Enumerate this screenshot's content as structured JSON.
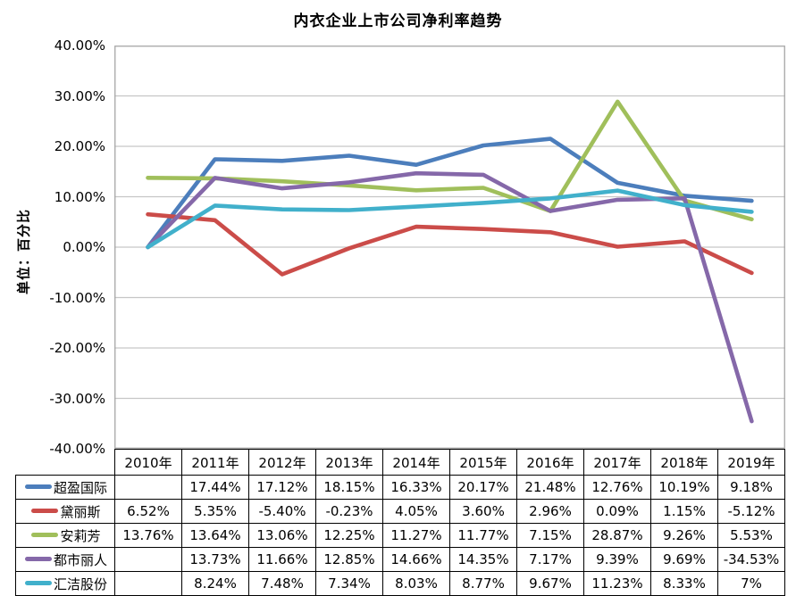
{
  "chart_data": {
    "type": "line",
    "title": "内衣企业上市公司净利率趋势",
    "ylabel": "单位：百分比",
    "xlabel": "",
    "categories": [
      "2010年",
      "2011年",
      "2012年",
      "2013年",
      "2014年",
      "2015年",
      "2016年",
      "2017年",
      "2018年",
      "2019年"
    ],
    "series": [
      {
        "name": "超盈国际",
        "color": "#4C7EBC",
        "values": [
          null,
          17.44,
          17.12,
          18.15,
          16.33,
          20.17,
          21.48,
          12.76,
          10.19,
          9.18
        ]
      },
      {
        "name": "黛丽斯",
        "color": "#CB4C49",
        "values": [
          6.52,
          5.35,
          -5.4,
          -0.23,
          4.05,
          3.6,
          2.96,
          0.09,
          1.15,
          -5.12
        ]
      },
      {
        "name": "安莉芳",
        "color": "#A0BF5B",
        "values": [
          13.76,
          13.64,
          13.06,
          12.25,
          11.27,
          11.77,
          7.15,
          28.87,
          9.26,
          5.53
        ]
      },
      {
        "name": "都市丽人",
        "color": "#8568A9",
        "values": [
          null,
          13.73,
          11.66,
          12.85,
          14.66,
          14.35,
          7.17,
          9.39,
          9.69,
          -34.53
        ]
      },
      {
        "name": "汇洁股份",
        "color": "#41B0CB",
        "values": [
          null,
          8.24,
          7.48,
          7.34,
          8.03,
          8.77,
          9.67,
          11.23,
          8.33,
          7
        ]
      }
    ],
    "ylim": [
      -40,
      40
    ],
    "ytick_step": 10,
    "ytick_labels": [
      "40.00%",
      "30.00%",
      "20.00%",
      "10.00%",
      "0.00%",
      "-10.00%",
      "-20.00%",
      "-30.00%",
      "-40.00%"
    ],
    "grid": true,
    "legend_position": "table-rows-left",
    "missing_plotted_as_zero": true,
    "gridline_color": "#C6C6C6",
    "plot_border_color": "#A6A6A6"
  },
  "table": {
    "header": [
      "2010年",
      "2011年",
      "2012年",
      "2013年",
      "2014年",
      "2015年",
      "2016年",
      "2017年",
      "2018年",
      "2019年"
    ],
    "rows": [
      {
        "label": "超盈国际",
        "marker_color": "#4C7EBC",
        "cells": [
          "",
          "17.44%",
          "17.12%",
          "18.15%",
          "16.33%",
          "20.17%",
          "21.48%",
          "12.76%",
          "10.19%",
          "9.18%"
        ]
      },
      {
        "label": "黛丽斯",
        "marker_color": "#CB4C49",
        "cells": [
          "6.52%",
          "5.35%",
          "-5.40%",
          "-0.23%",
          "4.05%",
          "3.60%",
          "2.96%",
          "0.09%",
          "1.15%",
          "-5.12%"
        ]
      },
      {
        "label": "安莉芳",
        "marker_color": "#A0BF5B",
        "cells": [
          "13.76%",
          "13.64%",
          "13.06%",
          "12.25%",
          "11.27%",
          "11.77%",
          "7.15%",
          "28.87%",
          "9.26%",
          "5.53%"
        ]
      },
      {
        "label": "都市丽人",
        "marker_color": "#8568A9",
        "cells": [
          "",
          "13.73%",
          "11.66%",
          "12.85%",
          "14.66%",
          "14.35%",
          "7.17%",
          "9.39%",
          "9.69%",
          "-34.53%"
        ]
      },
      {
        "label": "汇洁股份",
        "marker_color": "#41B0CB",
        "cells": [
          "",
          "8.24%",
          "7.48%",
          "7.34%",
          "8.03%",
          "8.77%",
          "9.67%",
          "11.23%",
          "8.33%",
          "7%"
        ]
      }
    ]
  }
}
